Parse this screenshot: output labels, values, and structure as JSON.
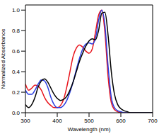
{
  "chart_data": {
    "type": "line",
    "x_label": "Wavelength (nm)",
    "y_label": "Normalized Absorbance",
    "x": [
      300,
      310,
      320,
      330,
      340,
      350,
      360,
      370,
      380,
      390,
      400,
      410,
      420,
      430,
      440,
      450,
      460,
      470,
      480,
      490,
      500,
      510,
      520,
      530,
      540,
      550,
      560,
      570,
      580,
      590,
      600,
      610,
      620,
      630,
      640,
      650,
      660,
      670,
      680,
      690,
      700
    ],
    "series": [
      {
        "color": "#e8141c",
        "values": [
          0.28,
          0.22,
          0.24,
          0.27,
          0.26,
          0.22,
          0.15,
          0.1,
          0.07,
          0.05,
          0.05,
          0.07,
          0.13,
          0.25,
          0.4,
          0.55,
          0.63,
          0.66,
          0.64,
          0.6,
          0.58,
          0.62,
          0.78,
          0.95,
          1.0,
          0.78,
          0.35,
          0.1,
          0.03,
          0.01,
          0,
          0,
          0,
          0,
          0,
          0,
          0,
          0,
          0,
          0,
          0
        ]
      },
      {
        "color": "#2a3ee0",
        "values": [
          0.22,
          0.18,
          0.18,
          0.22,
          0.28,
          0.32,
          0.31,
          0.25,
          0.15,
          0.08,
          0.05,
          0.05,
          0.07,
          0.12,
          0.2,
          0.3,
          0.42,
          0.53,
          0.62,
          0.67,
          0.68,
          0.67,
          0.72,
          0.9,
          1.0,
          0.85,
          0.45,
          0.15,
          0.05,
          0.02,
          0.01,
          0,
          0,
          0,
          0,
          0,
          0,
          0,
          0,
          0,
          0
        ]
      },
      {
        "color": "#000000",
        "values": [
          0.08,
          0.05,
          0.08,
          0.15,
          0.25,
          0.31,
          0.33,
          0.3,
          0.24,
          0.18,
          0.14,
          0.12,
          0.13,
          0.16,
          0.22,
          0.3,
          0.4,
          0.5,
          0.58,
          0.65,
          0.7,
          0.72,
          0.71,
          0.8,
          0.97,
          0.98,
          0.75,
          0.4,
          0.18,
          0.08,
          0.04,
          0.02,
          0.01,
          0,
          0,
          0,
          0,
          0,
          0,
          0,
          0
        ]
      }
    ],
    "xlim": [
      300,
      700
    ],
    "ylim": [
      0,
      1.05
    ],
    "xticks": [
      300,
      400,
      500,
      600,
      700
    ],
    "yticks": [
      {
        "value": 0,
        "label": "0.0"
      },
      0.2,
      0.4,
      0.6,
      0.8,
      {
        "value": 1,
        "label": "1.0"
      }
    ],
    "grid": false
  }
}
